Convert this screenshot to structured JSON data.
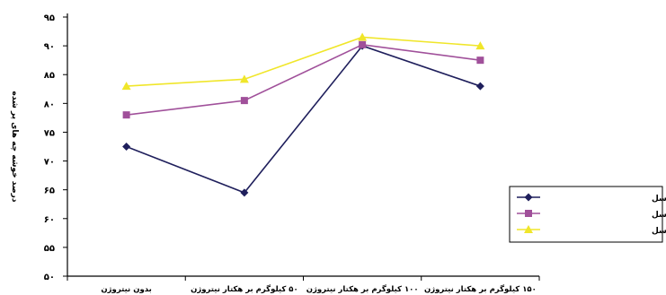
{
  "chart_data": {
    "type": "line",
    "title": "",
    "xlabel": "",
    "ylabel": "درصد خوشه چه های پر شده",
    "categories": [
      "بدون نیتروژن",
      "۵۰ کیلوگرم بر هکتار نیتروژن",
      "۱۰۰ کیلوگرم بر هکتار نیتروژن",
      "۱۵۰ کیلوگرم بر هکتار نیتروژن"
    ],
    "ylim": [
      50,
      95
    ],
    "yticks": [
      50,
      55,
      60,
      65,
      70,
      75,
      80,
      85,
      90,
      95
    ],
    "ytick_labels": [
      "۵۰",
      "۵۵",
      "۶۰",
      "۶۵",
      "۷۰",
      "۷۵",
      "۸۰",
      "۸۵",
      "۹۰",
      "۹۵"
    ],
    "grid": false,
    "legend": "right",
    "series": [
      {
        "name": "بدون سایکوسل",
        "values": [
          72.5,
          64.5,
          90,
          83
        ],
        "color": "#1f1f5c",
        "marker": "diamond"
      },
      {
        "name": "۱/۵ لیتر بر هکتار سایکوسل",
        "values": [
          78,
          80.5,
          90.2,
          87.5
        ],
        "color": "#a0509a",
        "marker": "square"
      },
      {
        "name": "۳ لیتر بر هکتار سایکوسل",
        "values": [
          83,
          84.2,
          91.5,
          90
        ],
        "color": "#f0e62a",
        "marker": "triangle"
      }
    ]
  }
}
